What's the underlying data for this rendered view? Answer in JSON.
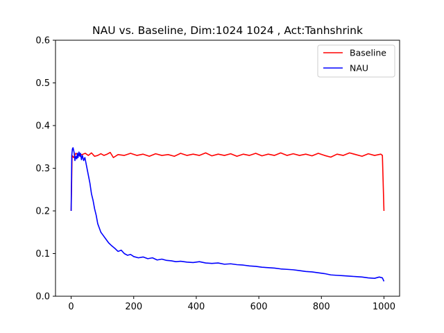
{
  "chart_data": {
    "type": "line",
    "title": "NAU vs. Baseline, Dim:1024 1024 , Act:Tanhshrink",
    "xlabel": "",
    "ylabel": "",
    "xlim": [
      -50,
      1050
    ],
    "ylim": [
      0.0,
      0.6
    ],
    "x_ticks": [
      0,
      200,
      400,
      600,
      800,
      1000
    ],
    "x_tick_labels": [
      "0",
      "200",
      "400",
      "600",
      "800",
      "1000"
    ],
    "y_ticks": [
      0.0,
      0.1,
      0.2,
      0.3,
      0.4,
      0.5,
      0.6
    ],
    "y_tick_labels": [
      "0.0",
      "0.1",
      "0.2",
      "0.3",
      "0.4",
      "0.5",
      "0.6"
    ],
    "grid": false,
    "legend_position": "top-right",
    "series": [
      {
        "name": "Baseline",
        "color": "#ff0000",
        "x": [
          0,
          3,
          8,
          15,
          25,
          35,
          45,
          55,
          65,
          75,
          85,
          95,
          105,
          115,
          125,
          135,
          150,
          170,
          190,
          210,
          230,
          250,
          270,
          290,
          310,
          330,
          350,
          370,
          390,
          410,
          430,
          450,
          470,
          490,
          510,
          530,
          550,
          570,
          590,
          610,
          630,
          650,
          670,
          690,
          710,
          730,
          750,
          770,
          790,
          810,
          830,
          850,
          870,
          890,
          910,
          930,
          950,
          970,
          990,
          995,
          1000
        ],
        "y": [
          0.2,
          0.33,
          0.325,
          0.335,
          0.33,
          0.332,
          0.335,
          0.33,
          0.336,
          0.328,
          0.33,
          0.334,
          0.33,
          0.333,
          0.337,
          0.325,
          0.332,
          0.33,
          0.335,
          0.33,
          0.333,
          0.328,
          0.334,
          0.33,
          0.332,
          0.328,
          0.335,
          0.33,
          0.333,
          0.33,
          0.336,
          0.329,
          0.333,
          0.33,
          0.334,
          0.328,
          0.333,
          0.33,
          0.335,
          0.329,
          0.333,
          0.33,
          0.336,
          0.33,
          0.334,
          0.33,
          0.333,
          0.329,
          0.335,
          0.33,
          0.326,
          0.333,
          0.33,
          0.336,
          0.332,
          0.328,
          0.334,
          0.33,
          0.333,
          0.33,
          0.2
        ]
      },
      {
        "name": "NAU",
        "color": "#0000ff",
        "x": [
          0,
          2,
          4,
          6,
          8,
          10,
          12,
          15,
          18,
          20,
          22,
          25,
          28,
          30,
          33,
          36,
          40,
          44,
          48,
          52,
          56,
          60,
          65,
          70,
          75,
          80,
          85,
          90,
          95,
          100,
          110,
          120,
          130,
          140,
          150,
          160,
          170,
          180,
          190,
          200,
          215,
          230,
          245,
          260,
          275,
          290,
          305,
          320,
          335,
          350,
          370,
          390,
          410,
          430,
          450,
          470,
          490,
          510,
          530,
          550,
          570,
          590,
          610,
          630,
          650,
          670,
          690,
          710,
          730,
          750,
          770,
          790,
          810,
          830,
          850,
          870,
          890,
          910,
          930,
          950,
          970,
          985,
          995,
          1000
        ],
        "y": [
          0.2,
          0.33,
          0.345,
          0.348,
          0.342,
          0.335,
          0.318,
          0.328,
          0.322,
          0.335,
          0.325,
          0.338,
          0.328,
          0.335,
          0.32,
          0.33,
          0.318,
          0.325,
          0.31,
          0.295,
          0.28,
          0.265,
          0.24,
          0.225,
          0.205,
          0.19,
          0.17,
          0.16,
          0.15,
          0.145,
          0.135,
          0.125,
          0.118,
          0.112,
          0.105,
          0.108,
          0.1,
          0.096,
          0.098,
          0.093,
          0.09,
          0.092,
          0.088,
          0.09,
          0.085,
          0.087,
          0.084,
          0.083,
          0.081,
          0.082,
          0.08,
          0.079,
          0.081,
          0.078,
          0.077,
          0.078,
          0.075,
          0.076,
          0.074,
          0.073,
          0.071,
          0.07,
          0.068,
          0.067,
          0.066,
          0.064,
          0.063,
          0.062,
          0.06,
          0.058,
          0.057,
          0.055,
          0.053,
          0.05,
          0.049,
          0.048,
          0.047,
          0.046,
          0.045,
          0.043,
          0.042,
          0.045,
          0.043,
          0.035
        ]
      }
    ]
  }
}
